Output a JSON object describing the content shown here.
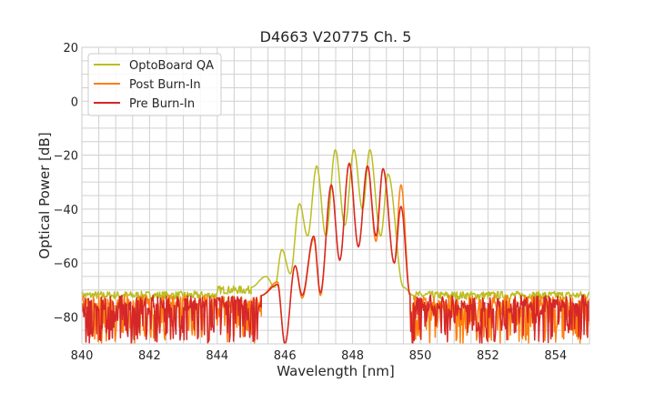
{
  "chart_data": {
    "type": "line",
    "title": "D4663 V20775 Ch. 5",
    "xlabel": "Wavelength [nm]",
    "ylabel": "Optical Power [dB]",
    "xlim": [
      840,
      855
    ],
    "ylim": [
      -90,
      20
    ],
    "xticks": [
      840,
      842,
      844,
      846,
      848,
      850,
      852,
      854
    ],
    "yticks": [
      -80,
      -60,
      -40,
      -20,
      0,
      20
    ],
    "grid": true,
    "legend_position": "top-left",
    "series": [
      {
        "name": "OptoBoard QA",
        "color": "#bcbd22",
        "noise_floor": {
          "left": [
            840,
            845.0
          ],
          "right": [
            849.8,
            855
          ],
          "level": -72,
          "spread": 3
        },
        "points": [
          [
            845.0,
            -69
          ],
          [
            845.44,
            -65
          ],
          [
            845.7,
            -69
          ],
          [
            845.91,
            -55
          ],
          [
            846.16,
            -64
          ],
          [
            846.43,
            -38
          ],
          [
            846.67,
            -50
          ],
          [
            846.94,
            -24
          ],
          [
            847.21,
            -50
          ],
          [
            847.49,
            -18
          ],
          [
            847.77,
            -46
          ],
          [
            848.04,
            -18
          ],
          [
            848.29,
            -40
          ],
          [
            848.51,
            -18
          ],
          [
            848.83,
            -50
          ],
          [
            849.05,
            -27
          ],
          [
            849.5,
            -69
          ],
          [
            849.8,
            -72
          ]
        ]
      },
      {
        "name": "Post Burn-In",
        "color": "#ff7f0e",
        "noise_floor": {
          "left": [
            840,
            845.3
          ],
          "right": [
            849.7,
            855
          ],
          "level": -72,
          "spread": 18
        },
        "points": [
          [
            845.3,
            -72
          ],
          [
            845.78,
            -67
          ],
          [
            846.0,
            -90
          ],
          [
            846.3,
            -61
          ],
          [
            846.51,
            -73
          ],
          [
            846.85,
            -51
          ],
          [
            847.05,
            -72
          ],
          [
            847.37,
            -31
          ],
          [
            847.62,
            -59
          ],
          [
            847.9,
            -23
          ],
          [
            848.17,
            -54
          ],
          [
            848.44,
            -24
          ],
          [
            848.69,
            -52
          ],
          [
            848.9,
            -25
          ],
          [
            849.23,
            -60
          ],
          [
            849.43,
            -31
          ],
          [
            849.7,
            -72
          ]
        ]
      },
      {
        "name": "Pre Burn-In",
        "color": "#d62728",
        "noise_floor": {
          "left": [
            840,
            845.3
          ],
          "right": [
            849.7,
            855
          ],
          "level": -72,
          "spread": 18
        },
        "points": [
          [
            845.3,
            -72
          ],
          [
            845.78,
            -68
          ],
          [
            846.0,
            -90
          ],
          [
            846.3,
            -61
          ],
          [
            846.51,
            -72
          ],
          [
            846.85,
            -50
          ],
          [
            847.05,
            -71
          ],
          [
            847.37,
            -31
          ],
          [
            847.62,
            -59
          ],
          [
            847.9,
            -23
          ],
          [
            848.17,
            -54
          ],
          [
            848.44,
            -24
          ],
          [
            848.69,
            -50
          ],
          [
            848.9,
            -25
          ],
          [
            849.23,
            -60
          ],
          [
            849.43,
            -39
          ],
          [
            849.7,
            -72
          ]
        ]
      }
    ]
  }
}
